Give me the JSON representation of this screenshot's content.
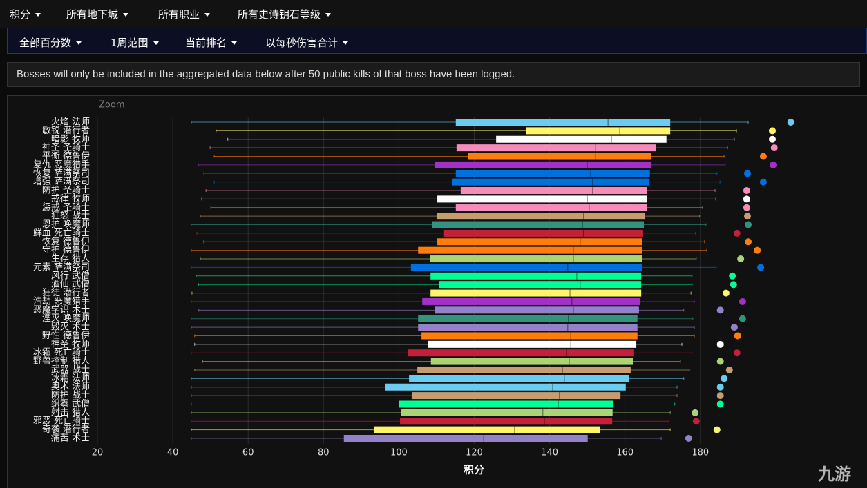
{
  "filters": [
    "积分",
    "所有地下城",
    "所有职业",
    "所有史诗钥石等级"
  ],
  "subfilters": [
    "全部百分数",
    "1周范围",
    "当前排名",
    "以每秒伤害合计"
  ],
  "notice": "Bosses will only be included in the aggregated data below after 50 public kills of that boss have been logged.",
  "watermark": "九游",
  "chart_data": {
    "type": "boxplot",
    "zoom_label": "Zoom",
    "xlabel": "积分",
    "xlim": [
      20,
      220
    ],
    "xticks": [
      20,
      40,
      60,
      80,
      100,
      120,
      140,
      160,
      180
    ],
    "grid": true,
    "categories": [
      "火焰 法师",
      "敏锐 潜行者",
      "暗影 牧师",
      "神圣 圣骑士",
      "平衡 德鲁伊",
      "复仇 恶魔猎手",
      "恢复 萨满祭司",
      "增强 萨满祭司",
      "防护 圣骑士",
      "戒律 牧师",
      "惩戒 圣骑士",
      "狂怒 战士",
      "恩护 唤魔师",
      "鲜血 死亡骑士",
      "恢复 德鲁伊",
      "守护 德鲁伊",
      "生存 猎人",
      "元素 萨满祭司",
      "风行 武僧",
      "酒仙 武僧",
      "狂徒 潜行者",
      "浩劫 恶魔猎手",
      "恶魔学识 术士",
      "湮灭 唤魔师",
      "毁灭 术士",
      "野性 德鲁伊",
      "神圣 牧师",
      "冰霜 死亡骑士",
      "野兽控制 猎人",
      "武器 战士",
      "冰霜 法师",
      "奥术 法师",
      "防护 战士",
      "织雾 武僧",
      "射击 猎人",
      "邪恶 死亡骑士",
      "奇袭 潜行者",
      "痛苦 术士"
    ],
    "low": [
      44.9,
      51.5,
      54.6,
      49.9,
      51,
      46.8,
      48.2,
      51,
      48.8,
      47.7,
      50.1,
      47.3,
      44.9,
      46.4,
      48.2,
      44.9,
      47.3,
      44.9,
      46.2,
      46.8,
      45.1,
      44.9,
      46.9,
      44.9,
      44.9,
      45.8,
      45.8,
      44.9,
      47.9,
      45.8,
      44.9,
      44.9,
      44.9,
      44.9,
      44.9,
      44.9,
      44.9,
      44.9
    ],
    "q1": [
      115.1,
      133.8,
      125.8,
      115.3,
      118.3,
      109.5,
      115.1,
      114.2,
      116.4,
      110.2,
      115.1,
      110,
      108.9,
      111.8,
      110.2,
      105.1,
      108.2,
      103.2,
      108.4,
      110.6,
      108.4,
      106.2,
      109.6,
      105.1,
      105.1,
      106,
      107.8,
      102.3,
      108.5,
      104.9,
      102.7,
      96.3,
      103.4,
      100.1,
      100.5,
      100.3,
      93.5,
      85.4
    ],
    "median": [
      155.5,
      158.6,
      156.4,
      152.2,
      152.2,
      150,
      150.9,
      151.4,
      151.4,
      150,
      150.5,
      149,
      148.7,
      149,
      148.1,
      146.3,
      146.3,
      144.8,
      147.2,
      148.1,
      145.4,
      145.9,
      146.3,
      145,
      144.8,
      145.6,
      145.6,
      144.5,
      145.2,
      143.4,
      143.9,
      140.8,
      142.6,
      142.3,
      138.2,
      138.6,
      130.7,
      122.5
    ],
    "q3": [
      172,
      172,
      171,
      168.3,
      167,
      167,
      166.6,
      166.5,
      165.9,
      165.9,
      165.9,
      165.2,
      165,
      164.8,
      164.6,
      164.6,
      164.6,
      164.6,
      164.3,
      164.3,
      164.3,
      164.1,
      163.7,
      163.3,
      163.3,
      163.3,
      163,
      162.4,
      162.2,
      161.5,
      161.1,
      160.2,
      158.8,
      156.9,
      156.7,
      156.6,
      153.3,
      150.1
    ],
    "high": [
      192.7,
      189.6,
      189,
      187.2,
      186.3,
      186.6,
      184.4,
      185.2,
      183.9,
      184.1,
      180.6,
      179.8,
      181.5,
      178.7,
      181.1,
      181.7,
      178.9,
      184.2,
      177.8,
      177.8,
      177.5,
      178.4,
      175.6,
      178,
      178.4,
      178.4,
      175.1,
      177.8,
      174.7,
      177.1,
      175.6,
      173.8,
      173.8,
      173.2,
      172,
      171.6,
      172,
      169.6
    ],
    "outliers": [
      204,
      199.1,
      199.1,
      199.6,
      196.7,
      199.3,
      192.5,
      196.7,
      192.3,
      192.3,
      192.3,
      192.5,
      192.7,
      189.7,
      192.7,
      195.1,
      190.7,
      196,
      188.5,
      188.8,
      186.8,
      191.2,
      185.3,
      191.2,
      189,
      189.9,
      185.3,
      189.7,
      185.3,
      187.7,
      186.3,
      185.3,
      185.3,
      185.3,
      178.6,
      178.9,
      184.4,
      176.9
    ],
    "colors": [
      "#69ccf0",
      "#fff569",
      "#ffffff",
      "#f58cba",
      "#ff7d0a",
      "#a330c9",
      "#0070de",
      "#0070de",
      "#f58cba",
      "#ffffff",
      "#f58cba",
      "#c79c6e",
      "#33937f",
      "#c41f3b",
      "#ff7d0a",
      "#ff7d0a",
      "#abd473",
      "#0070de",
      "#00ff96",
      "#00ff96",
      "#fff569",
      "#a330c9",
      "#9482c9",
      "#33937f",
      "#9482c9",
      "#ff7d0a",
      "#ffffff",
      "#c41f3b",
      "#abd473",
      "#c79c6e",
      "#69ccf0",
      "#69ccf0",
      "#c79c6e",
      "#00ff96",
      "#abd473",
      "#c41f3b",
      "#fff569",
      "#9482c9"
    ]
  }
}
